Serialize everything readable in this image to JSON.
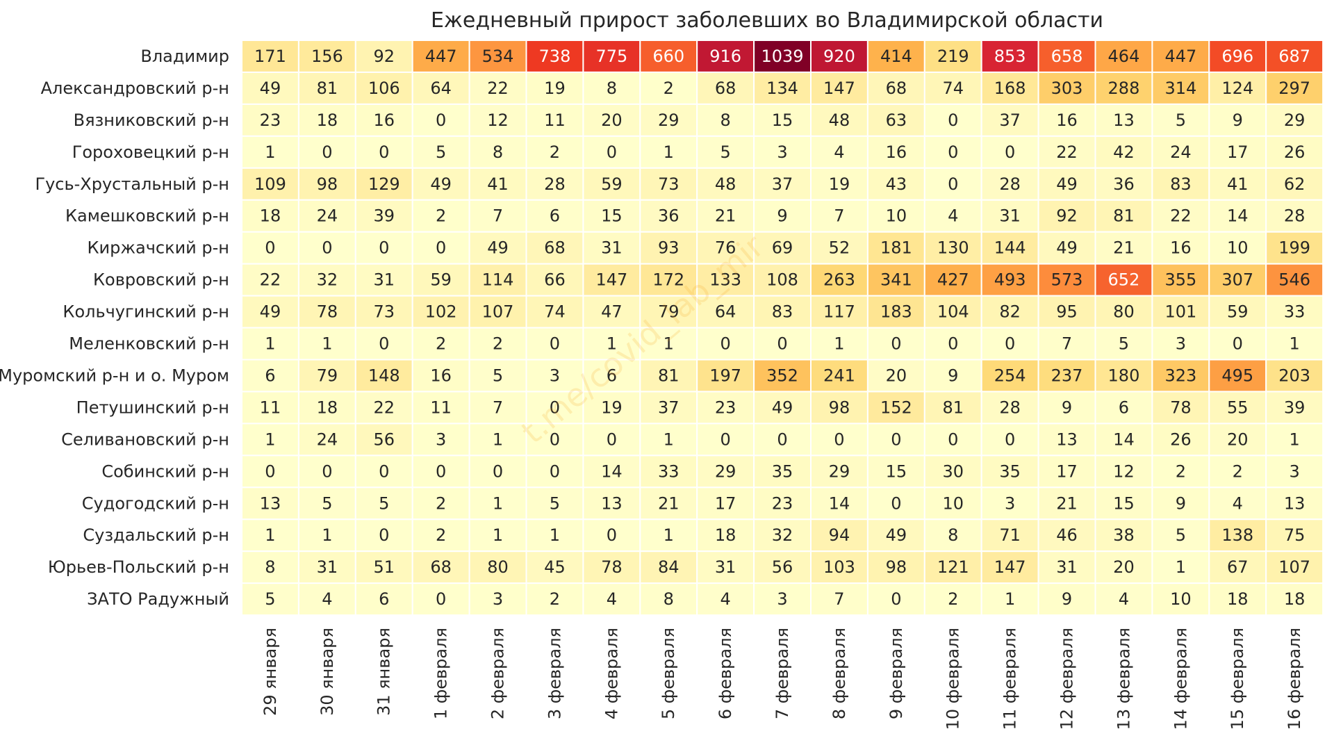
{
  "chart_data": {
    "type": "heatmap",
    "title": "Ежедневный прирост заболевших во Владимирской области",
    "watermark": "t.me/covid_lab_mir",
    "colormap": "YlOrRd-like (light yellow → red → dark crimson)",
    "value_range": [
      0,
      1039
    ],
    "legend": "none",
    "columns": [
      "29 января",
      "30 января",
      "31 января",
      "1 февраля",
      "2 февраля",
      "3 февраля",
      "4 февраля",
      "5 февраля",
      "6 февраля",
      "7 февраля",
      "8 февраля",
      "9 февраля",
      "10 февраля",
      "11 февраля",
      "12 февраля",
      "13 февраля",
      "14 февраля",
      "15 февраля",
      "16 февраля"
    ],
    "rows": [
      {
        "name": "Владимир",
        "values": [
          171,
          156,
          92,
          447,
          534,
          738,
          775,
          660,
          916,
          1039,
          920,
          414,
          219,
          853,
          658,
          464,
          447,
          696,
          687
        ]
      },
      {
        "name": "Александровский р-н",
        "values": [
          49,
          81,
          106,
          64,
          22,
          19,
          8,
          2,
          68,
          134,
          147,
          68,
          74,
          168,
          303,
          288,
          314,
          124,
          297
        ]
      },
      {
        "name": "Вязниковский р-н",
        "values": [
          23,
          18,
          16,
          0,
          12,
          11,
          20,
          29,
          8,
          15,
          48,
          63,
          0,
          37,
          16,
          13,
          5,
          9,
          29
        ]
      },
      {
        "name": "Гороховецкий р-н",
        "values": [
          1,
          0,
          0,
          5,
          8,
          2,
          0,
          1,
          5,
          3,
          4,
          16,
          0,
          0,
          22,
          42,
          24,
          17,
          26
        ]
      },
      {
        "name": "Гусь-Хрустальный р-н",
        "values": [
          109,
          98,
          129,
          49,
          41,
          28,
          59,
          73,
          48,
          37,
          19,
          43,
          0,
          28,
          49,
          36,
          83,
          41,
          62
        ]
      },
      {
        "name": "Камешковский р-н",
        "values": [
          18,
          24,
          39,
          2,
          7,
          6,
          15,
          36,
          21,
          9,
          7,
          10,
          4,
          31,
          92,
          81,
          22,
          14,
          28
        ]
      },
      {
        "name": "Киржачский р-н",
        "values": [
          0,
          0,
          0,
          0,
          49,
          68,
          31,
          93,
          76,
          69,
          52,
          181,
          130,
          144,
          49,
          21,
          16,
          10,
          199
        ]
      },
      {
        "name": "Ковровский р-н",
        "values": [
          22,
          32,
          31,
          59,
          114,
          66,
          147,
          172,
          133,
          108,
          263,
          341,
          427,
          493,
          573,
          652,
          355,
          307,
          546
        ]
      },
      {
        "name": "Кольчугинский р-н",
        "values": [
          49,
          78,
          73,
          102,
          107,
          74,
          47,
          79,
          64,
          83,
          117,
          183,
          104,
          82,
          95,
          80,
          101,
          59,
          33
        ]
      },
      {
        "name": "Меленковский р-н",
        "values": [
          1,
          1,
          0,
          2,
          2,
          0,
          1,
          1,
          0,
          0,
          1,
          0,
          0,
          0,
          7,
          5,
          3,
          0,
          1
        ]
      },
      {
        "name": "Муромский р-н и о. Муром",
        "values": [
          6,
          79,
          148,
          16,
          5,
          3,
          6,
          81,
          197,
          352,
          241,
          20,
          9,
          254,
          237,
          180,
          323,
          495,
          203
        ]
      },
      {
        "name": "Петушинский р-н",
        "values": [
          11,
          18,
          22,
          11,
          7,
          0,
          19,
          37,
          23,
          49,
          98,
          152,
          81,
          28,
          9,
          6,
          78,
          55,
          39
        ]
      },
      {
        "name": "Селивановский р-н",
        "values": [
          1,
          24,
          56,
          3,
          1,
          0,
          0,
          1,
          0,
          0,
          0,
          0,
          0,
          0,
          13,
          14,
          26,
          20,
          1
        ]
      },
      {
        "name": "Собинский р-н",
        "values": [
          0,
          0,
          0,
          0,
          0,
          0,
          14,
          33,
          29,
          35,
          29,
          15,
          30,
          35,
          17,
          12,
          2,
          2,
          3
        ]
      },
      {
        "name": "Судогодский р-н",
        "values": [
          13,
          5,
          5,
          2,
          1,
          5,
          13,
          21,
          17,
          23,
          14,
          0,
          10,
          3,
          21,
          15,
          9,
          4,
          13
        ]
      },
      {
        "name": "Суздальский р-н",
        "values": [
          1,
          1,
          0,
          2,
          1,
          1,
          0,
          1,
          18,
          32,
          94,
          49,
          8,
          71,
          46,
          38,
          5,
          138,
          75
        ]
      },
      {
        "name": "Юрьев-Польский р-н",
        "values": [
          8,
          31,
          51,
          68,
          80,
          45,
          78,
          84,
          31,
          56,
          103,
          98,
          121,
          147,
          31,
          20,
          1,
          67,
          107
        ]
      },
      {
        "name": "ЗАТО Радужный",
        "values": [
          5,
          4,
          6,
          0,
          3,
          2,
          4,
          8,
          4,
          3,
          7,
          0,
          2,
          1,
          9,
          4,
          10,
          18,
          18
        ]
      }
    ]
  }
}
